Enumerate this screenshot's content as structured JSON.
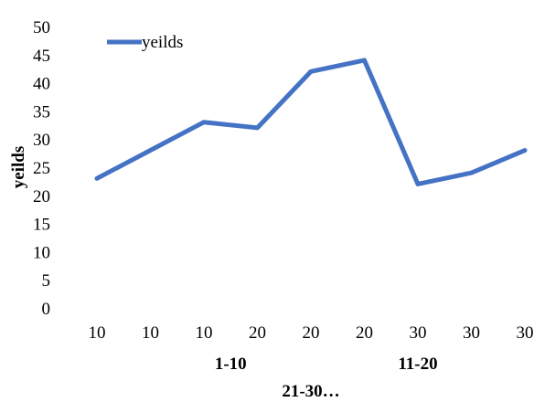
{
  "chart_data": {
    "type": "line",
    "ylabel": "yeilds",
    "ylim": [
      0,
      50
    ],
    "yticks": [
      "0",
      "5",
      "10",
      "15",
      "20",
      "25",
      "30",
      "35",
      "40",
      "45",
      "50"
    ],
    "x": [
      "10",
      "10",
      "10",
      "20",
      "20",
      "20",
      "30",
      "30",
      "30"
    ],
    "x_groups": [
      "1-10",
      "11-20",
      "21-30…"
    ],
    "grid": false,
    "legend": "top-left",
    "series": [
      {
        "name": "yeilds",
        "color": "#4472C4",
        "values": [
          23,
          28,
          33,
          32,
          42,
          44,
          22,
          24,
          28
        ]
      }
    ]
  }
}
